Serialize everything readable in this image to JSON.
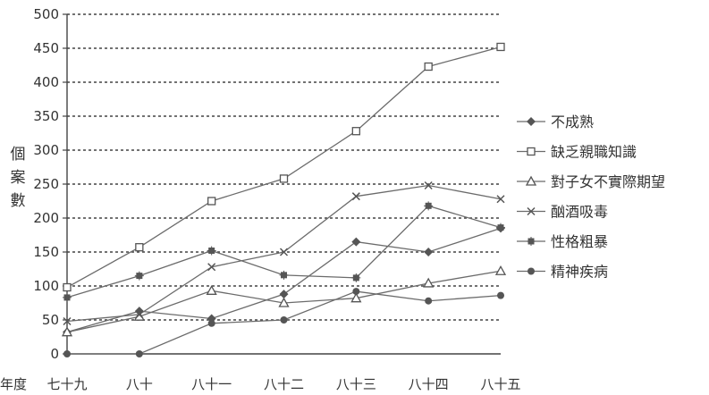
{
  "chart_data": {
    "type": "line",
    "title": "",
    "xlabel": "年度",
    "ylabel": "個案數",
    "categories": [
      "七十九",
      "八十",
      "八十一",
      "八十二",
      "八十三",
      "八十四",
      "八十五"
    ],
    "ylim": [
      0,
      500
    ],
    "yticks": [
      0,
      50,
      100,
      150,
      200,
      250,
      300,
      350,
      400,
      450,
      500
    ],
    "grid": "horizontal-dashed",
    "legend_position": "right",
    "series": [
      {
        "name": "不成熟",
        "marker": "diamond-filled",
        "values": [
          32,
          63,
          52,
          88,
          165,
          150,
          185
        ]
      },
      {
        "name": "缺乏親職知識",
        "marker": "square-open",
        "values": [
          98,
          157,
          225,
          258,
          328,
          423,
          452
        ]
      },
      {
        "name": "對子女不實際期望",
        "marker": "triangle-open",
        "values": [
          32,
          55,
          93,
          75,
          82,
          104,
          122
        ]
      },
      {
        "name": "酗酒吸毒",
        "marker": "x",
        "values": [
          48,
          58,
          128,
          150,
          232,
          248,
          228
        ]
      },
      {
        "name": "性格粗暴",
        "marker": "asterisk",
        "values": [
          83,
          115,
          152,
          116,
          112,
          218,
          186
        ]
      },
      {
        "name": "精神疾病",
        "marker": "circle-filled",
        "values": [
          0,
          0,
          45,
          50,
          92,
          78,
          86
        ]
      }
    ],
    "colors": {
      "line": "#6b6b6b",
      "marker": "#555555",
      "grid": "#444444",
      "text": "#333333"
    }
  }
}
